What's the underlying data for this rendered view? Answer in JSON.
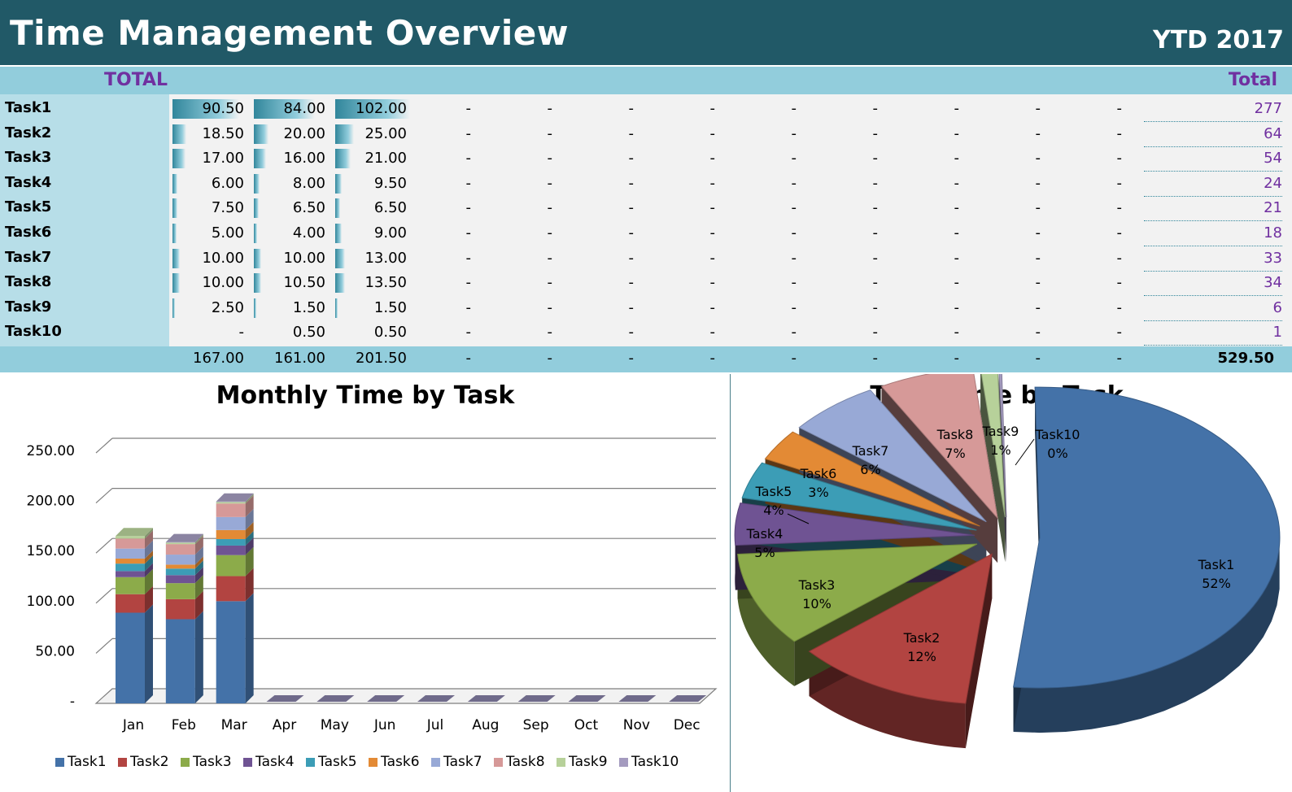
{
  "header": {
    "title": "Time Management Overview",
    "period": "YTD 2017"
  },
  "table": {
    "total_label_left": "TOTAL",
    "total_label_right": "Total",
    "dash": "-",
    "rows": [
      {
        "task": "Task1",
        "months": [
          "90.50",
          "84.00",
          "102.00"
        ],
        "bar": [
          0.89,
          0.82,
          1.0
        ],
        "total": "277"
      },
      {
        "task": "Task2",
        "months": [
          "18.50",
          "20.00",
          "25.00"
        ],
        "bar": [
          0.18,
          0.2,
          0.25
        ],
        "total": "64"
      },
      {
        "task": "Task3",
        "months": [
          "17.00",
          "16.00",
          "21.00"
        ],
        "bar": [
          0.17,
          0.16,
          0.21
        ],
        "total": "54"
      },
      {
        "task": "Task4",
        "months": [
          "6.00",
          "8.00",
          "9.50"
        ],
        "bar": [
          0.06,
          0.08,
          0.09
        ],
        "total": "24"
      },
      {
        "task": "Task5",
        "months": [
          "7.50",
          "6.50",
          "6.50"
        ],
        "bar": [
          0.07,
          0.06,
          0.06
        ],
        "total": "21"
      },
      {
        "task": "Task6",
        "months": [
          "5.00",
          "4.00",
          "9.00"
        ],
        "bar": [
          0.05,
          0.04,
          0.09
        ],
        "total": "18"
      },
      {
        "task": "Task7",
        "months": [
          "10.00",
          "10.00",
          "13.00"
        ],
        "bar": [
          0.1,
          0.1,
          0.13
        ],
        "total": "33"
      },
      {
        "task": "Task8",
        "months": [
          "10.00",
          "10.50",
          "13.50"
        ],
        "bar": [
          0.1,
          0.1,
          0.13
        ],
        "total": "34"
      },
      {
        "task": "Task9",
        "months": [
          "2.50",
          "1.50",
          "1.50"
        ],
        "bar": [
          0.02,
          0.015,
          0.015
        ],
        "total": "6"
      },
      {
        "task": "Task10",
        "months": [
          "-",
          "0.50",
          "0.50"
        ],
        "bar": [
          0,
          0,
          0
        ],
        "total": "1"
      }
    ],
    "month_sums": [
      "167.00",
      "161.00",
      "201.50"
    ],
    "grand_total": "529.50"
  },
  "chart_data": [
    {
      "type": "bar",
      "stacked": true,
      "title": "Monthly Time by Task",
      "categories": [
        "Jan",
        "Feb",
        "Mar",
        "Apr",
        "May",
        "Jun",
        "Jul",
        "Aug",
        "Sep",
        "Oct",
        "Nov",
        "Dec"
      ],
      "ylim": [
        0,
        250
      ],
      "yticks": [
        "-",
        "50.00",
        "100.00",
        "150.00",
        "200.00",
        "250.00"
      ],
      "legend": "bottom",
      "series": [
        {
          "name": "Task1",
          "color": "#4472a8",
          "values": [
            90.5,
            84,
            102,
            0,
            0,
            0,
            0,
            0,
            0,
            0,
            0,
            0
          ]
        },
        {
          "name": "Task2",
          "color": "#b24441",
          "values": [
            18.5,
            20,
            25,
            0,
            0,
            0,
            0,
            0,
            0,
            0,
            0,
            0
          ]
        },
        {
          "name": "Task3",
          "color": "#8cab4a",
          "values": [
            17,
            16,
            21,
            0,
            0,
            0,
            0,
            0,
            0,
            0,
            0,
            0
          ]
        },
        {
          "name": "Task4",
          "color": "#6f5393",
          "values": [
            6,
            8,
            9.5,
            0,
            0,
            0,
            0,
            0,
            0,
            0,
            0,
            0
          ]
        },
        {
          "name": "Task5",
          "color": "#3c9db6",
          "values": [
            7.5,
            6.5,
            6.5,
            0,
            0,
            0,
            0,
            0,
            0,
            0,
            0,
            0
          ]
        },
        {
          "name": "Task6",
          "color": "#e38a35",
          "values": [
            5,
            4,
            9,
            0,
            0,
            0,
            0,
            0,
            0,
            0,
            0,
            0
          ]
        },
        {
          "name": "Task7",
          "color": "#98a9d6",
          "values": [
            10,
            10,
            13,
            0,
            0,
            0,
            0,
            0,
            0,
            0,
            0,
            0
          ]
        },
        {
          "name": "Task8",
          "color": "#d69998",
          "values": [
            10,
            10.5,
            13.5,
            0,
            0,
            0,
            0,
            0,
            0,
            0,
            0,
            0
          ]
        },
        {
          "name": "Task9",
          "color": "#b7d19a",
          "values": [
            2.5,
            1.5,
            1.5,
            0,
            0,
            0,
            0,
            0,
            0,
            0,
            0,
            0
          ]
        },
        {
          "name": "Task10",
          "color": "#a49bbf",
          "values": [
            0,
            0.5,
            0.5,
            0,
            0,
            0,
            0,
            0,
            0,
            0,
            0,
            0
          ]
        }
      ]
    },
    {
      "type": "pie",
      "title": "Total Time by Task",
      "slices": [
        {
          "label": "Task1",
          "pct": "52%",
          "value": 277,
          "color": "#4472a8"
        },
        {
          "label": "Task2",
          "pct": "12%",
          "value": 64,
          "color": "#b24441"
        },
        {
          "label": "Task3",
          "pct": "10%",
          "value": 54,
          "color": "#8cab4a"
        },
        {
          "label": "Task4",
          "pct": "5%",
          "value": 24,
          "color": "#6f5393"
        },
        {
          "label": "Task5",
          "pct": "4%",
          "value": 21,
          "color": "#3c9db6"
        },
        {
          "label": "Task6",
          "pct": "3%",
          "value": 18,
          "color": "#e38a35"
        },
        {
          "label": "Task7",
          "pct": "6%",
          "value": 33,
          "color": "#98a9d6"
        },
        {
          "label": "Task8",
          "pct": "7%",
          "value": 34,
          "color": "#d69998"
        },
        {
          "label": "Task9",
          "pct": "1%",
          "value": 6,
          "color": "#b7d19a"
        },
        {
          "label": "Task10",
          "pct": "0%",
          "value": 1,
          "color": "#a49bbf"
        }
      ]
    }
  ]
}
